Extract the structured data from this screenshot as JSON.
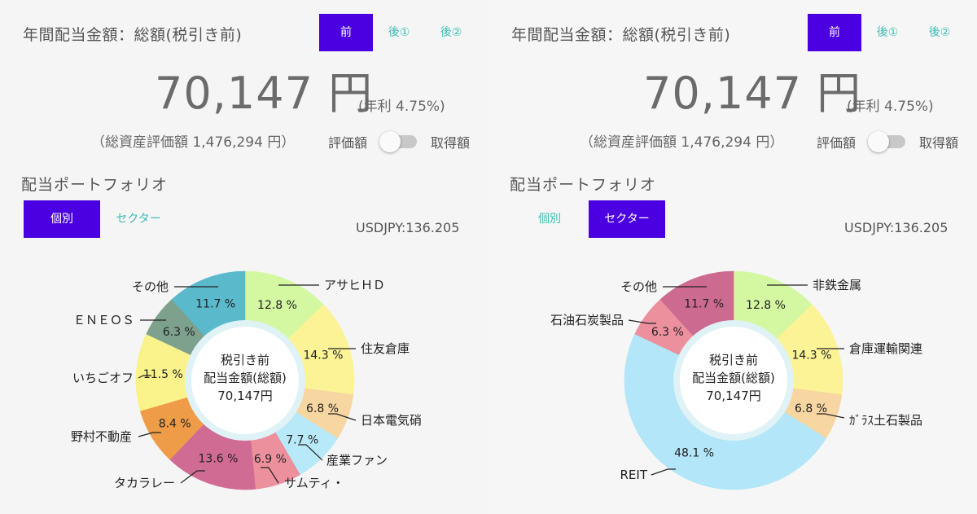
{
  "left": {
    "title": "年間配当金額：総額(税引き前)",
    "tabs": [
      "前",
      "後①",
      "後②"
    ],
    "active_tab": 0,
    "amount": "70,147 円",
    "yield": "(年利 4.75%)",
    "assets": "（総資産評価額 1,476,294 円）",
    "toggle_left": "評価額",
    "toggle_right": "取得額",
    "portfolio_heading": "配当ポートフォリオ",
    "segments": [
      "個別",
      "セクター"
    ],
    "active_segment": 0,
    "fx": "USDJPY:136.205",
    "center": [
      "税引き前",
      "配当金額(総額)",
      "70,147円"
    ]
  },
  "right": {
    "title": "年間配当金額：総額(税引き前)",
    "tabs": [
      "前",
      "後①",
      "後②"
    ],
    "active_tab": 0,
    "amount": "70,147 円",
    "yield": "(年利 4.75%)",
    "assets": "（総資産評価額 1,476,294 円）",
    "toggle_left": "評価額",
    "toggle_right": "取得額",
    "portfolio_heading": "配当ポートフォリオ",
    "segments": [
      "個別",
      "セクター"
    ],
    "active_segment": 1,
    "fx": "USDJPY:136.205",
    "center": [
      "税引き前",
      "配当金額(総額)",
      "70,147円"
    ]
  },
  "chart_data": [
    {
      "type": "pie",
      "categories": [
        "アサヒＨＤ",
        "住友倉庫",
        "日本電気硝",
        "産業ファン",
        "サムティ・",
        "タカラレー",
        "野村不動産",
        "いちごオフ",
        "ＥＮＥＯＳ",
        "その他"
      ],
      "values": [
        12.8,
        14.3,
        6.8,
        7.7,
        6.9,
        13.6,
        8.4,
        11.5,
        6.3,
        11.7
      ],
      "labels": [
        "12.8 %",
        "14.3 %",
        "6.8 %",
        "7.7 %",
        "6.9 %",
        "13.6 %",
        "8.4 %",
        "11.5 %",
        "6.3 %",
        "11.7 %"
      ],
      "colors": [
        "#d4f8a2",
        "#fbf396",
        "#f7d6a2",
        "#b8e9f8",
        "#ec909e",
        "#d06c94",
        "#ee9c48",
        "#faf28a",
        "#7da18d",
        "#5ab9cb"
      ]
    },
    {
      "type": "pie",
      "categories": [
        "非鉄金属",
        "倉庫運輸関連",
        "ｶﾞﾗｽ土石製品",
        "REIT",
        "石油石炭製品",
        "その他"
      ],
      "values": [
        12.8,
        14.3,
        6.8,
        48.1,
        6.3,
        11.7
      ],
      "labels": [
        "12.8 %",
        "14.3 %",
        "6.8 %",
        "48.1 %",
        "6.3 %",
        "11.7 %"
      ],
      "colors": [
        "#d4f8a2",
        "#fbf396",
        "#f7d6a2",
        "#b2e6f8",
        "#ec909e",
        "#cc6a90"
      ]
    }
  ]
}
